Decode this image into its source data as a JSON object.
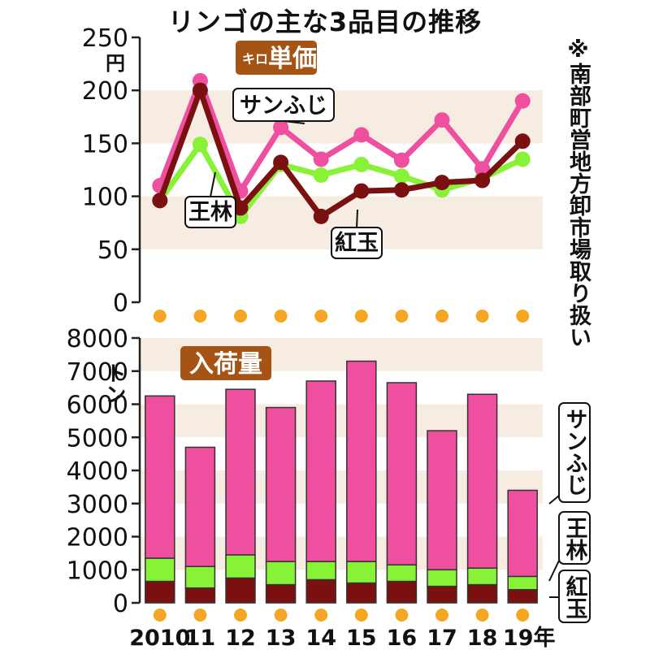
{
  "title": "リンゴの主な3品目の推移",
  "note": "※南部町営地方卸市場取り扱い",
  "colors": {
    "sanfuji": "#ee4f9f",
    "ourin": "#88f237",
    "kougyoku": "#7a1010",
    "band": "#f7ece2",
    "dot": "#f5a623",
    "badge": "#a65316"
  },
  "chart_data": [
    {
      "type": "line",
      "badge": "キロ単価",
      "badge_prefix": "キロ",
      "badge_main": "単価",
      "ylabel": "円",
      "ylim": [
        0,
        250
      ],
      "yticks": [
        "250",
        "200",
        "150",
        "100",
        "50",
        "0"
      ],
      "categories": [
        "2010",
        "11",
        "12",
        "13",
        "14",
        "15",
        "16",
        "17",
        "18",
        "19年"
      ],
      "series": [
        {
          "name": "サンふじ",
          "values": [
            110,
            209,
            105,
            165,
            135,
            158,
            134,
            172,
            126,
            190
          ]
        },
        {
          "name": "王林",
          "values": [
            96,
            149,
            81,
            130,
            120,
            130,
            119,
            106,
            117,
            135
          ]
        },
        {
          "name": "紅玉",
          "values": [
            96,
            200,
            89,
            132,
            81,
            105,
            106,
            113,
            115,
            152
          ]
        }
      ]
    },
    {
      "type": "bar",
      "stacked": true,
      "badge": "入荷量",
      "ylabel": "トン",
      "ylim": [
        0,
        8000
      ],
      "yticks": [
        "8000",
        "7000",
        "6000",
        "5000",
        "4000",
        "3000",
        "2000",
        "1000",
        "0"
      ],
      "categories": [
        "2010",
        "11",
        "12",
        "13",
        "14",
        "15",
        "16",
        "17",
        "18",
        "19年"
      ],
      "series": [
        {
          "name": "紅玉",
          "values": [
            650,
            450,
            750,
            550,
            700,
            600,
            650,
            500,
            550,
            400
          ]
        },
        {
          "name": "王林",
          "values": [
            700,
            650,
            700,
            700,
            550,
            650,
            500,
            500,
            500,
            400
          ]
        },
        {
          "name": "サンふじ",
          "values": [
            4900,
            3600,
            5000,
            4650,
            5450,
            6050,
            5500,
            4200,
            5250,
            2600
          ]
        }
      ]
    }
  ]
}
